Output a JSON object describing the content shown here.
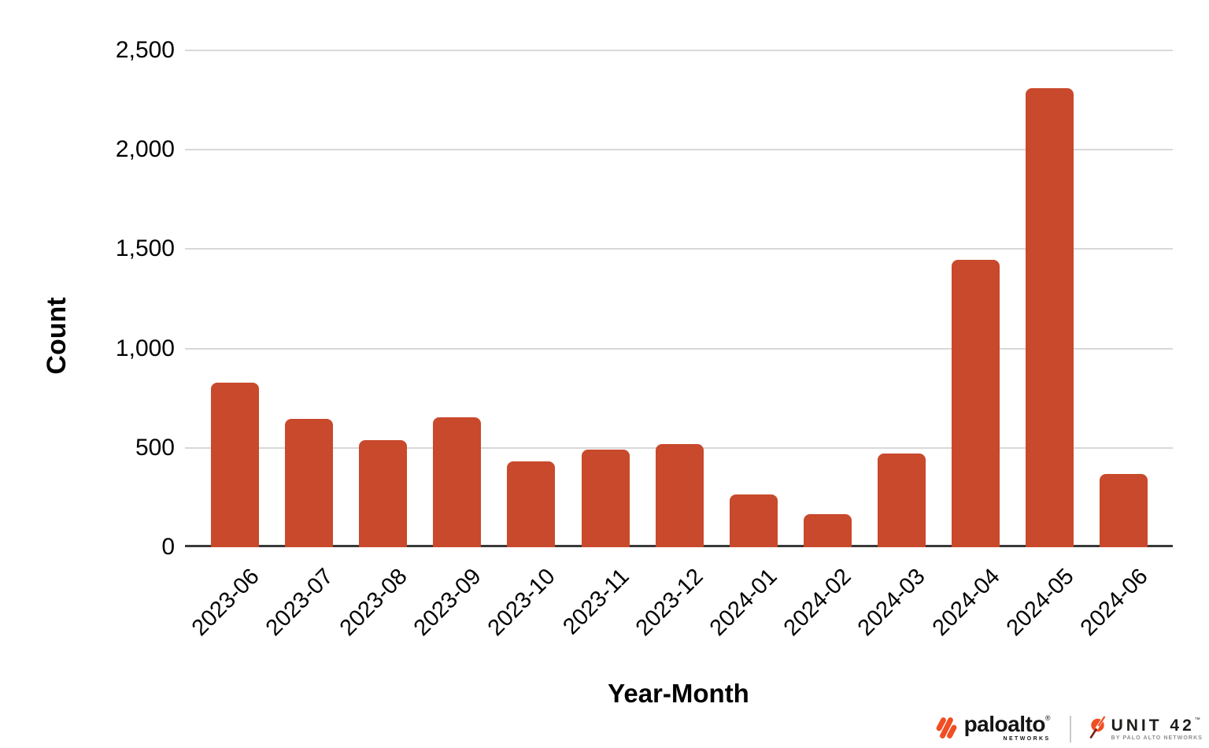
{
  "chart_data": {
    "type": "bar",
    "categories": [
      "2023-06",
      "2023-07",
      "2023-08",
      "2023-09",
      "2023-10",
      "2023-11",
      "2023-12",
      "2024-01",
      "2024-02",
      "2024-03",
      "2024-04",
      "2024-05",
      "2024-06"
    ],
    "values": [
      830,
      645,
      540,
      655,
      430,
      490,
      520,
      265,
      165,
      470,
      1445,
      2310,
      370
    ],
    "title": "",
    "xlabel": "Year-Month",
    "ylabel": "Count",
    "ylim": [
      0,
      2500
    ],
    "yticks": [
      0,
      500,
      1000,
      1500,
      2000,
      2500
    ],
    "ytick_labels": [
      "0",
      "500",
      "1,000",
      "1,500",
      "2,000",
      "2,500"
    ],
    "grid": true,
    "legend": false,
    "bar_color": "#C8492B",
    "gridline_color": "#d8d8d8",
    "axis_color": "#3a3a3a"
  },
  "footer": {
    "paloalto": {
      "word": "paloalto",
      "reg": "®",
      "sub": "NETWORKS"
    },
    "unit42": {
      "word": "UNIT 42",
      "tm": "™",
      "sub": "BY PALO ALTO NETWORKS"
    },
    "logo_orange": "#F04E23"
  }
}
